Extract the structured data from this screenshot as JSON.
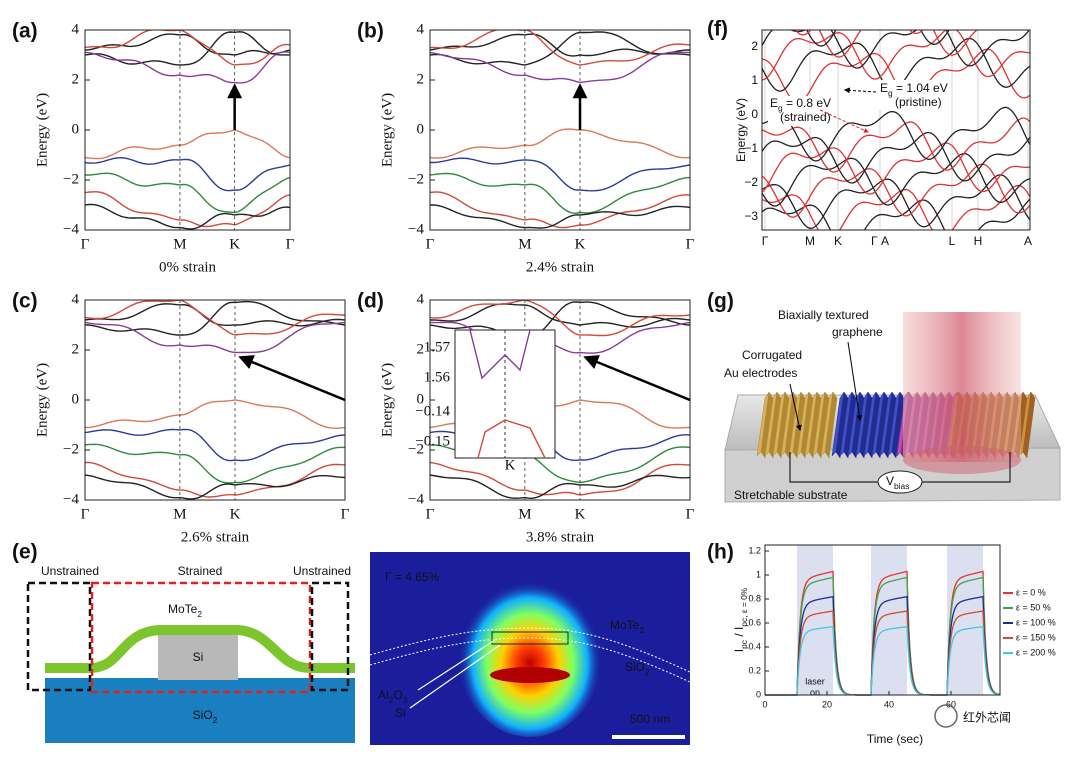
{
  "band_panels": [
    {
      "label": "(a)",
      "y_axis": "Energy (eV)",
      "yticks": [
        "4",
        "2",
        "0",
        "−2",
        "−4"
      ],
      "kpoints": [
        "Γ",
        "M",
        "K",
        "Γ"
      ],
      "caption": "0% strain"
    },
    {
      "label": "(b)",
      "y_axis": "Energy (eV)",
      "yticks": [
        "4",
        "2",
        "0",
        "−2",
        "−4"
      ],
      "kpoints": [
        "Γ",
        "M",
        "K",
        "Γ"
      ],
      "caption": "2.4% strain"
    },
    {
      "label": "(c)",
      "y_axis": "Energy (eV)",
      "yticks": [
        "4",
        "2",
        "0",
        "−2",
        "−4"
      ],
      "kpoints": [
        "Γ",
        "M",
        "K",
        "Γ"
      ],
      "caption": "2.6% strain"
    },
    {
      "label": "(d)",
      "y_axis": "Energy (eV)",
      "yticks": [
        "4",
        "2",
        "0",
        "−2",
        "−4"
      ],
      "kpoints": [
        "Γ",
        "M",
        "K",
        "Γ"
      ],
      "caption": "3.8% strain",
      "inset": {
        "yticks": [
          "1.57",
          "1.56",
          "−0.14",
          "−0.15"
        ],
        "kpoint": "K"
      }
    }
  ],
  "panel_f": {
    "label": "(f)",
    "y_axis": "Energy (eV)",
    "yticks": [
      "2",
      "1",
      "0",
      "−1",
      "−2",
      "−3"
    ],
    "kpoints": [
      "Γ",
      "M",
      "K",
      "Γ A",
      "L",
      "H",
      "A"
    ],
    "pristine": {
      "symbol": "E",
      "sub": "g",
      "value": " = 1.04 eV",
      "note": "(pristine)"
    },
    "strained": {
      "symbol": "E",
      "sub": "g",
      "value": " = 0.8 eV",
      "note": "(strained)"
    }
  },
  "panel_g": {
    "label": "(g)",
    "graphene": [
      "Biaxially textured",
      "graphene"
    ],
    "electrodes": [
      "Corrugated",
      "Au electrodes"
    ],
    "bias": {
      "symbol": "V",
      "sub": "bias"
    },
    "substrate": "Stretchable substrate"
  },
  "panel_e": {
    "label": "(e)",
    "unstrained_left": "Unstrained",
    "strained": "Strained",
    "unstrained_right": "Unstrained",
    "mote": {
      "symbol": "MoTe",
      "sub": "2"
    },
    "si": "Si",
    "sio2": {
      "symbol": "SiO",
      "sub": "2"
    },
    "mode": {
      "confinement": "Γ = 4.65%",
      "mote": {
        "symbol": "MoTe",
        "sub": "2"
      },
      "sio2": {
        "symbol": "SiO",
        "sub": "2"
      },
      "al2o3": [
        "Al",
        "2",
        "O",
        "3"
      ],
      "si": "Si",
      "scale": "500 nm"
    }
  },
  "panel_h": {
    "label": "(h)",
    "y_axis": [
      "I",
      "pc",
      " / I",
      "pc, ε = 0%"
    ],
    "x_axis": "Time (sec)",
    "yticks": [
      "1.2",
      "1",
      "0.8",
      "0.6",
      "0.4",
      "0.2",
      "0"
    ],
    "xticks": [
      "0",
      "20",
      "40",
      "60"
    ],
    "laser": [
      "laser",
      "on"
    ],
    "legend": [
      {
        "name": "ε = 0 %",
        "color": "#e8322a"
      },
      {
        "name": "ε = 50 %",
        "color": "#3aa84a"
      },
      {
        "name": "ε = 100 %",
        "color": "#1a2a9a"
      },
      {
        "name": "ε = 150 %",
        "color": "#c8502a"
      },
      {
        "name": "ε = 200 %",
        "color": "#40c8e0"
      }
    ]
  },
  "watermark": "红外芯闻"
}
